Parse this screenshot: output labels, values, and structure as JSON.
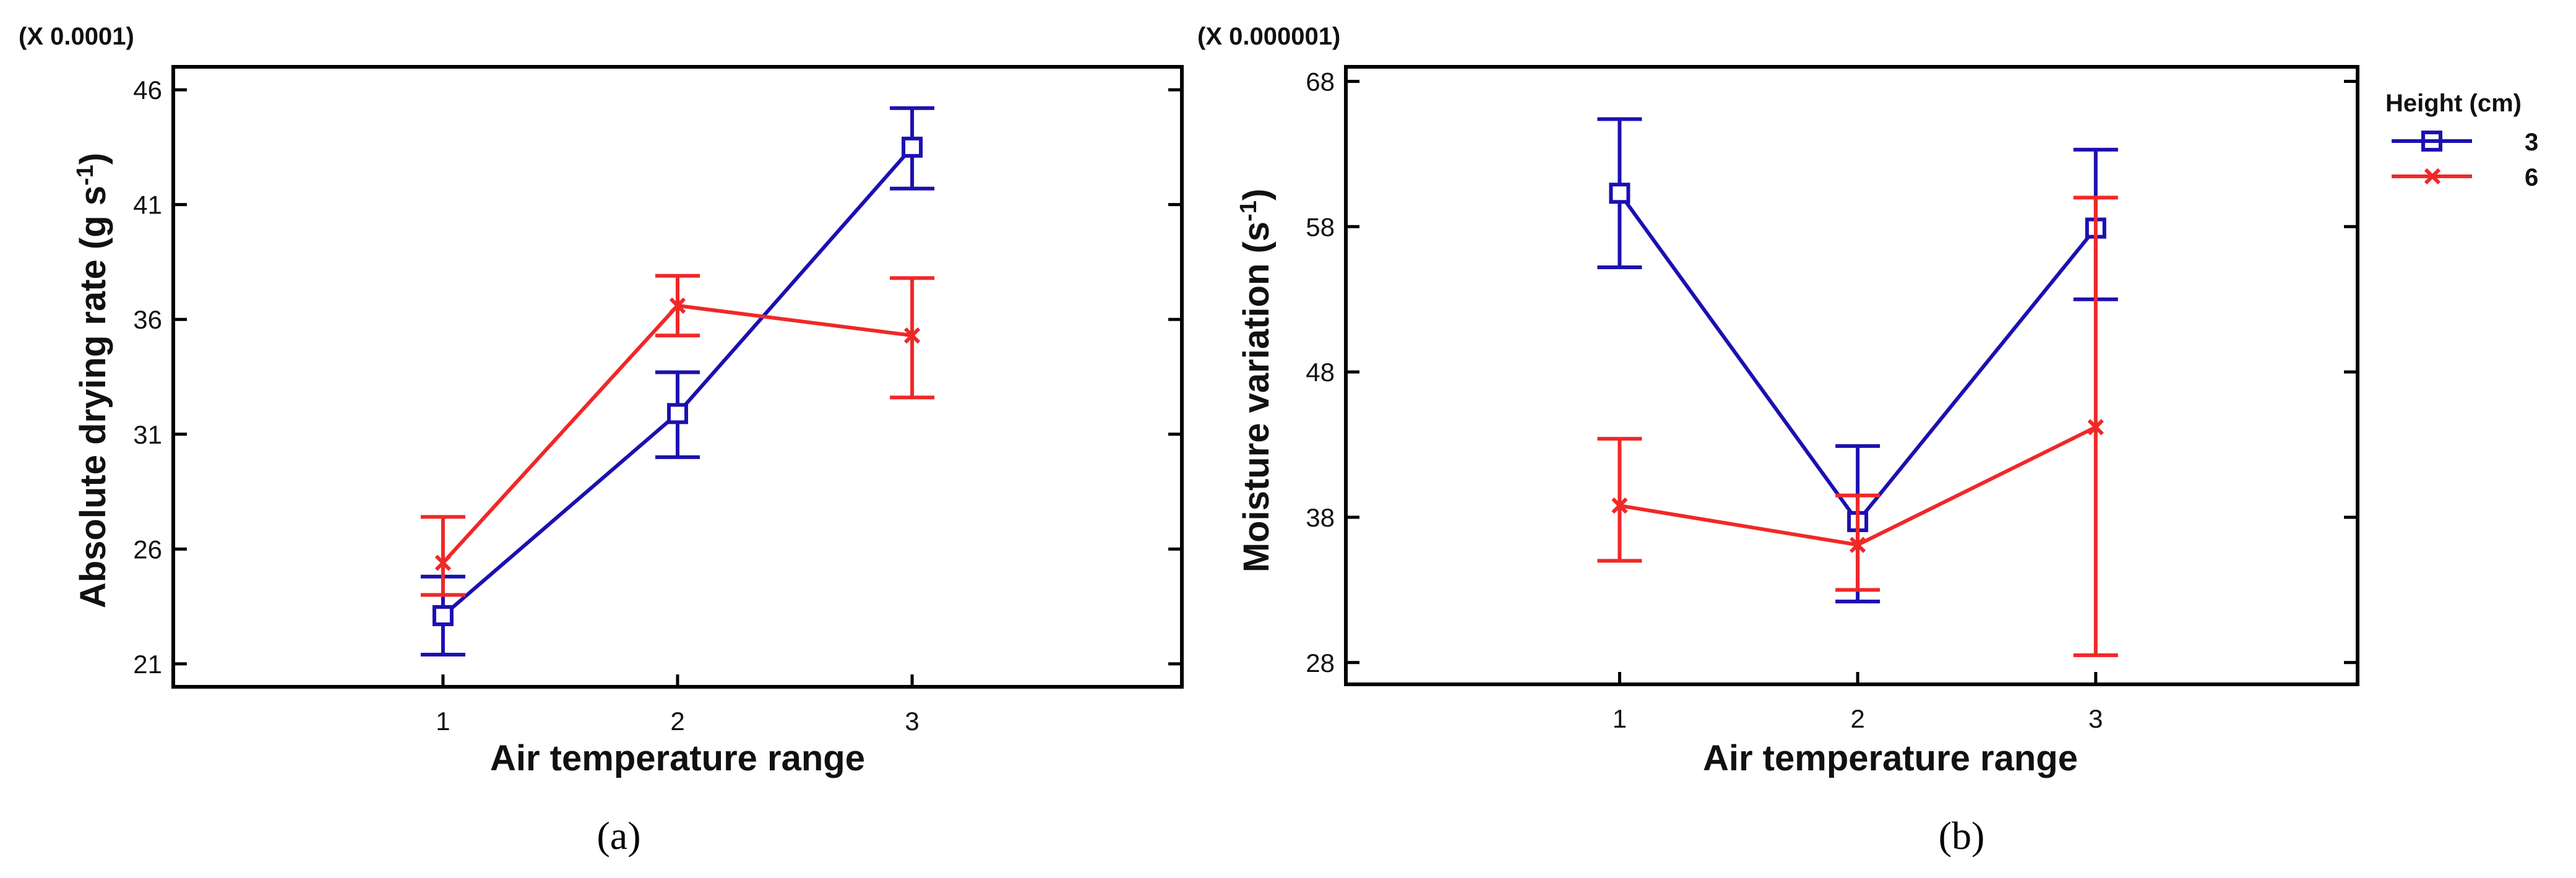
{
  "colors": {
    "series_3": "#1c10b0",
    "series_6": "#f02828",
    "axes": "#000000"
  },
  "legend": {
    "title": "Height (cm)",
    "items": [
      {
        "label": "3",
        "color": "#1c10b0",
        "marker": "square"
      },
      {
        "label": "6",
        "color": "#f02828",
        "marker": "x"
      }
    ]
  },
  "chart_data": [
    {
      "type": "line",
      "panel_label": "(a)",
      "multiplier": "(X 0.0001)",
      "xlabel": "Air temperature range",
      "ylabel": "Absolute drying rate (g s",
      "ylabel_sup": "-1",
      "ylabel_end": ")",
      "x": [
        1,
        2,
        3
      ],
      "x_ticks": [
        "1",
        "2",
        "3"
      ],
      "xlim": [
        -0.15,
        4.15
      ],
      "ylim": [
        20,
        47
      ],
      "y_ticks": [
        21,
        26,
        31,
        36,
        41,
        46
      ],
      "series": [
        {
          "name": "3",
          "color": "#1c10b0",
          "marker": "square",
          "values": [
            23.1,
            31.9,
            43.5
          ],
          "err_low": [
            21.4,
            30.0,
            41.7
          ],
          "err_high": [
            24.8,
            33.7,
            45.2
          ]
        },
        {
          "name": "6",
          "color": "#f02828",
          "marker": "x",
          "values": [
            25.4,
            36.6,
            35.3
          ],
          "err_low": [
            24.0,
            35.3,
            32.6
          ],
          "err_high": [
            27.4,
            37.9,
            37.8
          ]
        }
      ]
    },
    {
      "type": "line",
      "panel_label": "(b)",
      "multiplier": "(X 0.000001)",
      "xlabel": "Air temperature range",
      "ylabel": "Moisture variation (s",
      "ylabel_sup": "-1",
      "ylabel_end": ")",
      "x": [
        1,
        2,
        3
      ],
      "x_ticks": [
        "1",
        "2",
        "3"
      ],
      "xlim": [
        -0.15,
        4.1
      ],
      "ylim": [
        26.5,
        69
      ],
      "y_ticks": [
        28,
        38,
        48,
        58,
        68
      ],
      "series": [
        {
          "name": "3",
          "color": "#1c10b0",
          "marker": "square",
          "values": [
            60.3,
            37.7,
            57.9
          ],
          "err_low": [
            55.2,
            32.2,
            53.0
          ],
          "err_high": [
            65.4,
            42.9,
            63.3
          ]
        },
        {
          "name": "6",
          "color": "#f02828",
          "marker": "x",
          "values": [
            38.8,
            36.1,
            44.2
          ],
          "err_low": [
            35.0,
            33.0,
            28.5
          ],
          "err_high": [
            43.4,
            39.5,
            60.0
          ]
        }
      ]
    }
  ]
}
